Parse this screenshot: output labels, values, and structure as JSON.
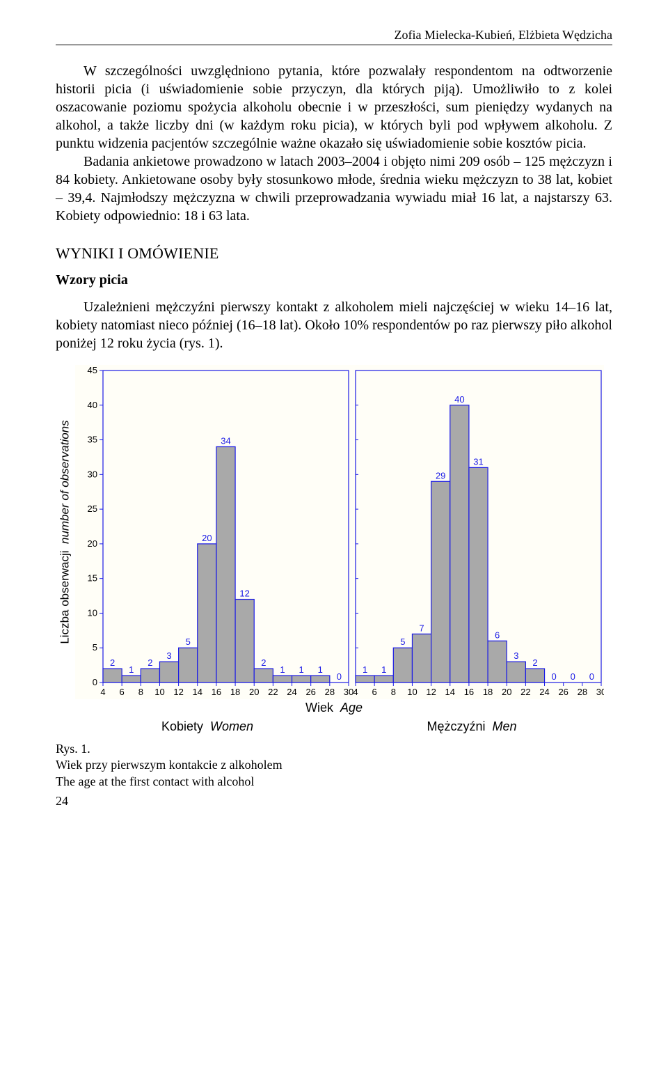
{
  "header": {
    "authors": "Zofia Mielecka-Kubień, Elżbieta Wędzicha"
  },
  "text": {
    "p1": "W szczególności uwzględniono pytania, które pozwalały respondentom na odtworzenie historii picia (i uświadomienie sobie przyczyn, dla których piją). Umożliwiło to z kolei oszacowanie poziomu spożycia alkoholu obecnie i w przeszłości, sum pieniędzy wydanych na alkohol, a także liczby dni (w każdym roku picia), w których byli pod wpływem alkoholu. Z punktu widzenia pacjentów szczególnie ważne okazało się uświadomienie sobie kosztów picia.",
    "p2": "Badania ankietowe prowadzono w latach 2003–2004 i objęto nimi 209 osób – 125 mężczyzn i 84 kobiety. Ankietowane osoby były stosunkowo młode, średnia wieku mężczyzn to 38 lat, kobiet – 39,4. Najmłodszy mężczyzna w chwili przeprowadzania wywiadu miał 16 lat, a najstarszy 63. Kobiety odpowiednio: 18 i 63 lata.",
    "section": "WYNIKI I OMÓWIENIE",
    "subsection": "Wzory picia",
    "p3": "Uzależnieni mężczyźni pierwszy kontakt z alkoholem mieli najczęściej w wieku 14–16 lat, kobiety natomiast nieco później (16–18 lat). Około 10% respondentów po raz pierwszy piło alkohol poniżej 12 roku życia (rys. 1)."
  },
  "figure": {
    "ylabel": "Liczba obserwacji",
    "ylabel_it": "number of observations",
    "xlabel": "Wiek",
    "xlabel_it": "Age",
    "ylim": [
      0,
      45
    ],
    "ytick_step": 5,
    "xticks": [
      4,
      6,
      8,
      10,
      12,
      14,
      16,
      18,
      20,
      22,
      24,
      26,
      28,
      30
    ],
    "bar_fill": "#a9a9a9",
    "bar_stroke": "#1a1ae6",
    "bar_label_color": "#1a1ae6",
    "plot_bg": "#fffef7",
    "frame_color": "#1a1ae6",
    "tick_font_color": "#000000",
    "tick_fontsize": 13,
    "panels": [
      {
        "label": "Kobiety",
        "label_it": "Women",
        "x": [
          4,
          6,
          8,
          10,
          12,
          14,
          16,
          18,
          20,
          22,
          24,
          26,
          28
        ],
        "y": [
          2,
          1,
          2,
          3,
          5,
          20,
          34,
          12,
          2,
          1,
          1,
          1,
          0
        ]
      },
      {
        "label": "Mężczyźni",
        "label_it": "Men",
        "x": [
          4,
          6,
          8,
          10,
          12,
          14,
          16,
          18,
          20,
          22,
          24,
          26,
          28
        ],
        "y": [
          1,
          1,
          5,
          7,
          29,
          40,
          31,
          6,
          3,
          2,
          0,
          0,
          0
        ]
      }
    ],
    "caption_prefix": "Rys. 1.",
    "caption_pl": "Wiek przy pierwszym kontakcie z alkoholem",
    "caption_en": "The age at the first contact with alcohol"
  },
  "page_number": "24"
}
